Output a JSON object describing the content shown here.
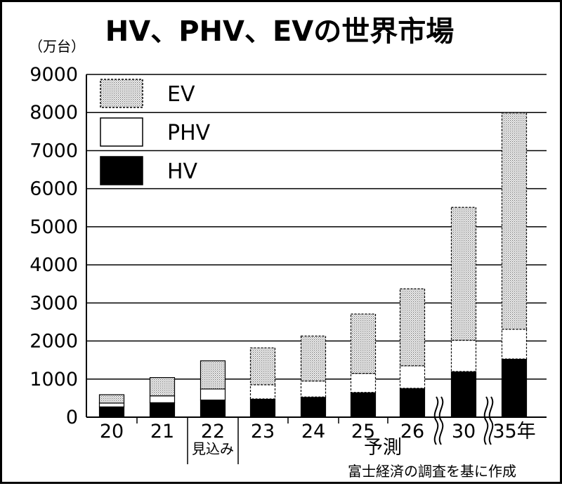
{
  "chart_data": {
    "type": "bar",
    "stacked": true,
    "title": "HV、PHV、EVの世界市場",
    "unit": "（万台）",
    "ylim": [
      0,
      9000
    ],
    "yticks": [
      0,
      1000,
      2000,
      3000,
      4000,
      5000,
      6000,
      7000,
      8000,
      9000
    ],
    "grid": true,
    "legend_position": "top-left",
    "categories": [
      "20",
      "21",
      "22",
      "23",
      "24",
      "25",
      "26",
      "30",
      "35年"
    ],
    "category_sublabels": {
      "22": "見込み"
    },
    "forecast_label": "予測",
    "source_note": "富士経済の調査を基に作成",
    "series": [
      {
        "name": "HV",
        "pattern": "solid-black",
        "values": [
          270,
          380,
          450,
          480,
          530,
          650,
          760,
          1200,
          1530
        ]
      },
      {
        "name": "PHV",
        "pattern": "white",
        "values": [
          100,
          180,
          290,
          370,
          420,
          500,
          590,
          820,
          780
        ]
      },
      {
        "name": "EV",
        "pattern": "gray-dots",
        "values": [
          220,
          480,
          740,
          970,
          1180,
          1560,
          2020,
          3490,
          5680
        ]
      }
    ],
    "legend_order": [
      "EV",
      "PHV",
      "HV"
    ]
  }
}
